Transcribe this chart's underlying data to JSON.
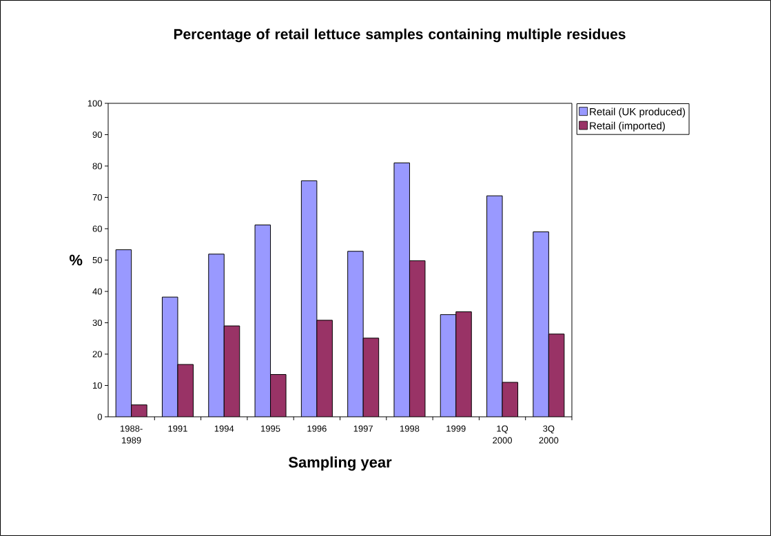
{
  "chart_data": {
    "type": "bar",
    "title": "Percentage of retail lettuce samples containing multiple residues",
    "xlabel": "Sampling year",
    "ylabel": "%",
    "categories": [
      "1988-1989",
      "1991",
      "1994",
      "1995",
      "1996",
      "1997",
      "1998",
      "1999",
      "1Q 2000",
      "3Q 2000"
    ],
    "series": [
      {
        "name": "Retail (UK produced)",
        "color": "#9999ff",
        "values": [
          53.3,
          38.2,
          51.9,
          61.2,
          75.3,
          52.8,
          81.0,
          32.6,
          70.5,
          59.0
        ]
      },
      {
        "name": "Retail (imported)",
        "color": "#993366",
        "values": [
          3.8,
          16.7,
          29.0,
          13.5,
          30.8,
          25.1,
          49.8,
          33.5,
          11.0,
          26.4
        ]
      }
    ],
    "ylim": [
      0,
      100
    ],
    "yticks": [
      0,
      10,
      20,
      30,
      40,
      50,
      60,
      70,
      80,
      90,
      100
    ],
    "legend": "top right"
  }
}
